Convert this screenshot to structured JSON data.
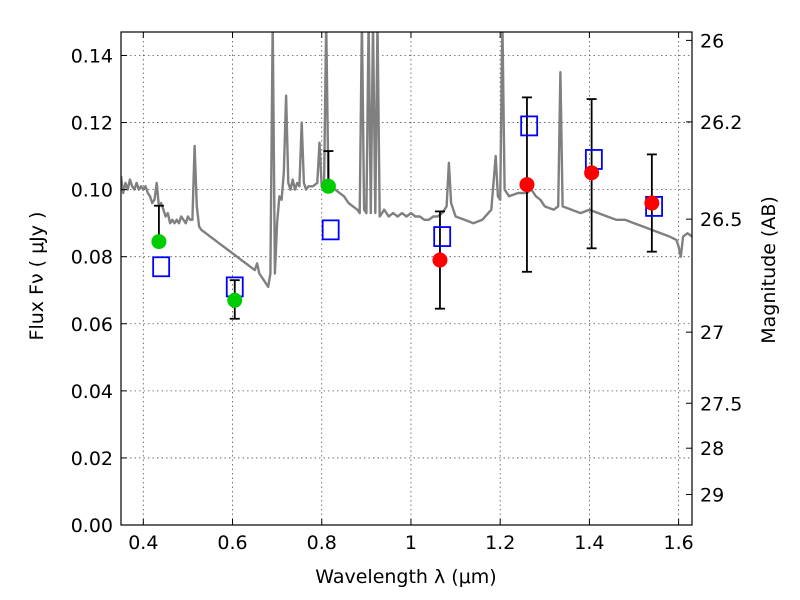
{
  "chart_data": {
    "type": "scatter",
    "title": "",
    "xlabel": "Wavelength  λ (μm)",
    "ylabel_left": "Flux  Fν  ( μJy )",
    "ylabel_right": "Magnitude (AB)",
    "xlim": [
      0.35,
      1.63
    ],
    "ylim": [
      0.0,
      0.147
    ],
    "grid": true,
    "x_ticks": [
      {
        "value": 0.4,
        "label": "0.4"
      },
      {
        "value": 0.6,
        "label": "0.6"
      },
      {
        "value": 0.8,
        "label": "0.8"
      },
      {
        "value": 1.0,
        "label": "1"
      },
      {
        "value": 1.2,
        "label": "1.2"
      },
      {
        "value": 1.4,
        "label": "1.4"
      },
      {
        "value": 1.6,
        "label": "1.6"
      }
    ],
    "y_ticks": [
      {
        "value": 0.0,
        "label": "0.00"
      },
      {
        "value": 0.02,
        "label": "0.02"
      },
      {
        "value": 0.04,
        "label": "0.04"
      },
      {
        "value": 0.06,
        "label": "0.06"
      },
      {
        "value": 0.08,
        "label": "0.08"
      },
      {
        "value": 0.1,
        "label": "0.10"
      },
      {
        "value": 0.12,
        "label": "0.12"
      },
      {
        "value": 0.14,
        "label": "0.14"
      }
    ],
    "right_ticks": [
      {
        "flux": 0.1445,
        "label": "26"
      },
      {
        "flux": 0.1202,
        "label": "26.2"
      },
      {
        "flux": 0.0912,
        "label": "26.5"
      },
      {
        "flux": 0.0575,
        "label": "27"
      },
      {
        "flux": 0.0363,
        "label": "27.5"
      },
      {
        "flux": 0.0229,
        "label": "28"
      },
      {
        "flux": 0.0091,
        "label": "29"
      }
    ],
    "series": [
      {
        "kind": "model_spectrum",
        "color": "#808080",
        "points": [
          [
            0.35,
            0.104
          ],
          [
            0.355,
            0.099
          ],
          [
            0.36,
            0.102
          ],
          [
            0.365,
            0.1
          ],
          [
            0.37,
            0.103
          ],
          [
            0.375,
            0.101
          ],
          [
            0.38,
            0.1
          ],
          [
            0.385,
            0.102
          ],
          [
            0.39,
            0.1
          ],
          [
            0.395,
            0.101
          ],
          [
            0.4,
            0.1
          ],
          [
            0.405,
            0.101
          ],
          [
            0.41,
            0.099
          ],
          [
            0.415,
            0.098
          ],
          [
            0.42,
            0.096
          ],
          [
            0.425,
            0.097
          ],
          [
            0.43,
            0.102
          ],
          [
            0.435,
            0.095
          ],
          [
            0.44,
            0.096
          ],
          [
            0.445,
            0.094
          ],
          [
            0.45,
            0.092
          ],
          [
            0.455,
            0.093
          ],
          [
            0.46,
            0.09
          ],
          [
            0.465,
            0.091
          ],
          [
            0.47,
            0.09
          ],
          [
            0.475,
            0.091
          ],
          [
            0.48,
            0.09
          ],
          [
            0.485,
            0.092
          ],
          [
            0.49,
            0.091
          ],
          [
            0.495,
            0.09
          ],
          [
            0.5,
            0.092
          ],
          [
            0.505,
            0.091
          ],
          [
            0.51,
            0.091
          ],
          [
            0.515,
            0.113
          ],
          [
            0.52,
            0.095
          ],
          [
            0.525,
            0.089
          ],
          [
            0.53,
            0.088
          ],
          [
            0.54,
            0.087
          ],
          [
            0.55,
            0.086
          ],
          [
            0.56,
            0.085
          ],
          [
            0.57,
            0.084
          ],
          [
            0.58,
            0.083
          ],
          [
            0.59,
            0.082
          ],
          [
            0.6,
            0.081
          ],
          [
            0.61,
            0.08
          ],
          [
            0.62,
            0.079
          ],
          [
            0.63,
            0.078
          ],
          [
            0.64,
            0.077
          ],
          [
            0.65,
            0.076
          ],
          [
            0.655,
            0.078
          ],
          [
            0.66,
            0.075
          ],
          [
            0.67,
            0.073
          ],
          [
            0.68,
            0.071
          ],
          [
            0.685,
            0.075
          ],
          [
            0.69,
            0.15
          ],
          [
            0.695,
            0.075
          ],
          [
            0.7,
            0.09
          ],
          [
            0.705,
            0.098
          ],
          [
            0.71,
            0.097
          ],
          [
            0.715,
            0.105
          ],
          [
            0.72,
            0.128
          ],
          [
            0.725,
            0.102
          ],
          [
            0.73,
            0.1
          ],
          [
            0.735,
            0.103
          ],
          [
            0.74,
            0.1
          ],
          [
            0.745,
            0.102
          ],
          [
            0.75,
            0.101
          ],
          [
            0.755,
            0.12
          ],
          [
            0.76,
            0.102
          ],
          [
            0.765,
            0.1
          ],
          [
            0.77,
            0.101
          ],
          [
            0.78,
            0.101
          ],
          [
            0.79,
            0.102
          ],
          [
            0.795,
            0.114
          ],
          [
            0.8,
            0.101
          ],
          [
            0.805,
            0.1
          ],
          [
            0.81,
            0.15
          ],
          [
            0.815,
            0.101
          ],
          [
            0.82,
            0.1
          ],
          [
            0.83,
            0.1
          ],
          [
            0.84,
            0.099
          ],
          [
            0.85,
            0.098
          ],
          [
            0.86,
            0.096
          ],
          [
            0.87,
            0.095
          ],
          [
            0.88,
            0.094
          ],
          [
            0.885,
            0.093
          ],
          [
            0.89,
            0.15
          ],
          [
            0.895,
            0.094
          ],
          [
            0.9,
            0.093
          ],
          [
            0.905,
            0.15
          ],
          [
            0.91,
            0.093
          ],
          [
            0.915,
            0.15
          ],
          [
            0.92,
            0.093
          ],
          [
            0.925,
            0.15
          ],
          [
            0.93,
            0.092
          ],
          [
            0.94,
            0.094
          ],
          [
            0.95,
            0.092
          ],
          [
            0.96,
            0.093
          ],
          [
            0.97,
            0.092
          ],
          [
            0.98,
            0.093
          ],
          [
            0.99,
            0.092
          ],
          [
            1.0,
            0.093
          ],
          [
            1.01,
            0.092
          ],
          [
            1.02,
            0.092
          ],
          [
            1.03,
            0.091
          ],
          [
            1.04,
            0.091
          ],
          [
            1.05,
            0.092
          ],
          [
            1.06,
            0.092
          ],
          [
            1.07,
            0.093
          ],
          [
            1.08,
            0.095
          ],
          [
            1.085,
            0.108
          ],
          [
            1.09,
            0.096
          ],
          [
            1.1,
            0.092
          ],
          [
            1.12,
            0.091
          ],
          [
            1.14,
            0.09
          ],
          [
            1.16,
            0.091
          ],
          [
            1.18,
            0.094
          ],
          [
            1.19,
            0.11
          ],
          [
            1.195,
            0.098
          ],
          [
            1.2,
            0.097
          ],
          [
            1.205,
            0.15
          ],
          [
            1.21,
            0.1
          ],
          [
            1.22,
            0.098
          ],
          [
            1.24,
            0.099
          ],
          [
            1.26,
            0.099
          ],
          [
            1.27,
            0.1
          ],
          [
            1.28,
            0.098
          ],
          [
            1.29,
            0.097
          ],
          [
            1.3,
            0.095
          ],
          [
            1.32,
            0.094
          ],
          [
            1.33,
            0.095
          ],
          [
            1.335,
            0.135
          ],
          [
            1.34,
            0.095
          ],
          [
            1.36,
            0.094
          ],
          [
            1.38,
            0.093
          ],
          [
            1.4,
            0.094
          ],
          [
            1.42,
            0.093
          ],
          [
            1.44,
            0.092
          ],
          [
            1.46,
            0.091
          ],
          [
            1.48,
            0.091
          ],
          [
            1.5,
            0.09
          ],
          [
            1.52,
            0.089
          ],
          [
            1.54,
            0.088
          ],
          [
            1.56,
            0.087
          ],
          [
            1.58,
            0.086
          ],
          [
            1.595,
            0.085
          ],
          [
            1.6,
            0.083
          ],
          [
            1.605,
            0.08
          ],
          [
            1.61,
            0.086
          ],
          [
            1.62,
            0.087
          ],
          [
            1.63,
            0.086
          ]
        ]
      },
      {
        "kind": "model_photometry",
        "marker": "open-square",
        "color": "#0000ff",
        "points": [
          {
            "x": 0.44,
            "y": 0.077
          },
          {
            "x": 0.605,
            "y": 0.071
          },
          {
            "x": 0.82,
            "y": 0.088
          },
          {
            "x": 1.07,
            "y": 0.086
          },
          {
            "x": 1.265,
            "y": 0.119
          },
          {
            "x": 1.41,
            "y": 0.109
          },
          {
            "x": 1.545,
            "y": 0.095
          }
        ]
      },
      {
        "kind": "observed_optical",
        "marker": "filled-circle",
        "color": "#00cc00",
        "points": [
          {
            "x": 0.435,
            "y": 0.0845,
            "ylo": 0.0845,
            "yhi": 0.0952
          },
          {
            "x": 0.605,
            "y": 0.067,
            "ylo": 0.0615,
            "yhi": 0.073
          },
          {
            "x": 0.815,
            "y": 0.101,
            "ylo": 0.101,
            "yhi": 0.1115
          }
        ]
      },
      {
        "kind": "observed_nir",
        "marker": "filled-circle",
        "color": "#ff0000",
        "points": [
          {
            "x": 1.065,
            "y": 0.079,
            "ylo": 0.0645,
            "yhi": 0.0935
          },
          {
            "x": 1.26,
            "y": 0.1015,
            "ylo": 0.0755,
            "yhi": 0.1275
          },
          {
            "x": 1.405,
            "y": 0.105,
            "ylo": 0.0825,
            "yhi": 0.127
          },
          {
            "x": 1.54,
            "y": 0.096,
            "ylo": 0.0815,
            "yhi": 0.1105
          }
        ]
      }
    ]
  }
}
